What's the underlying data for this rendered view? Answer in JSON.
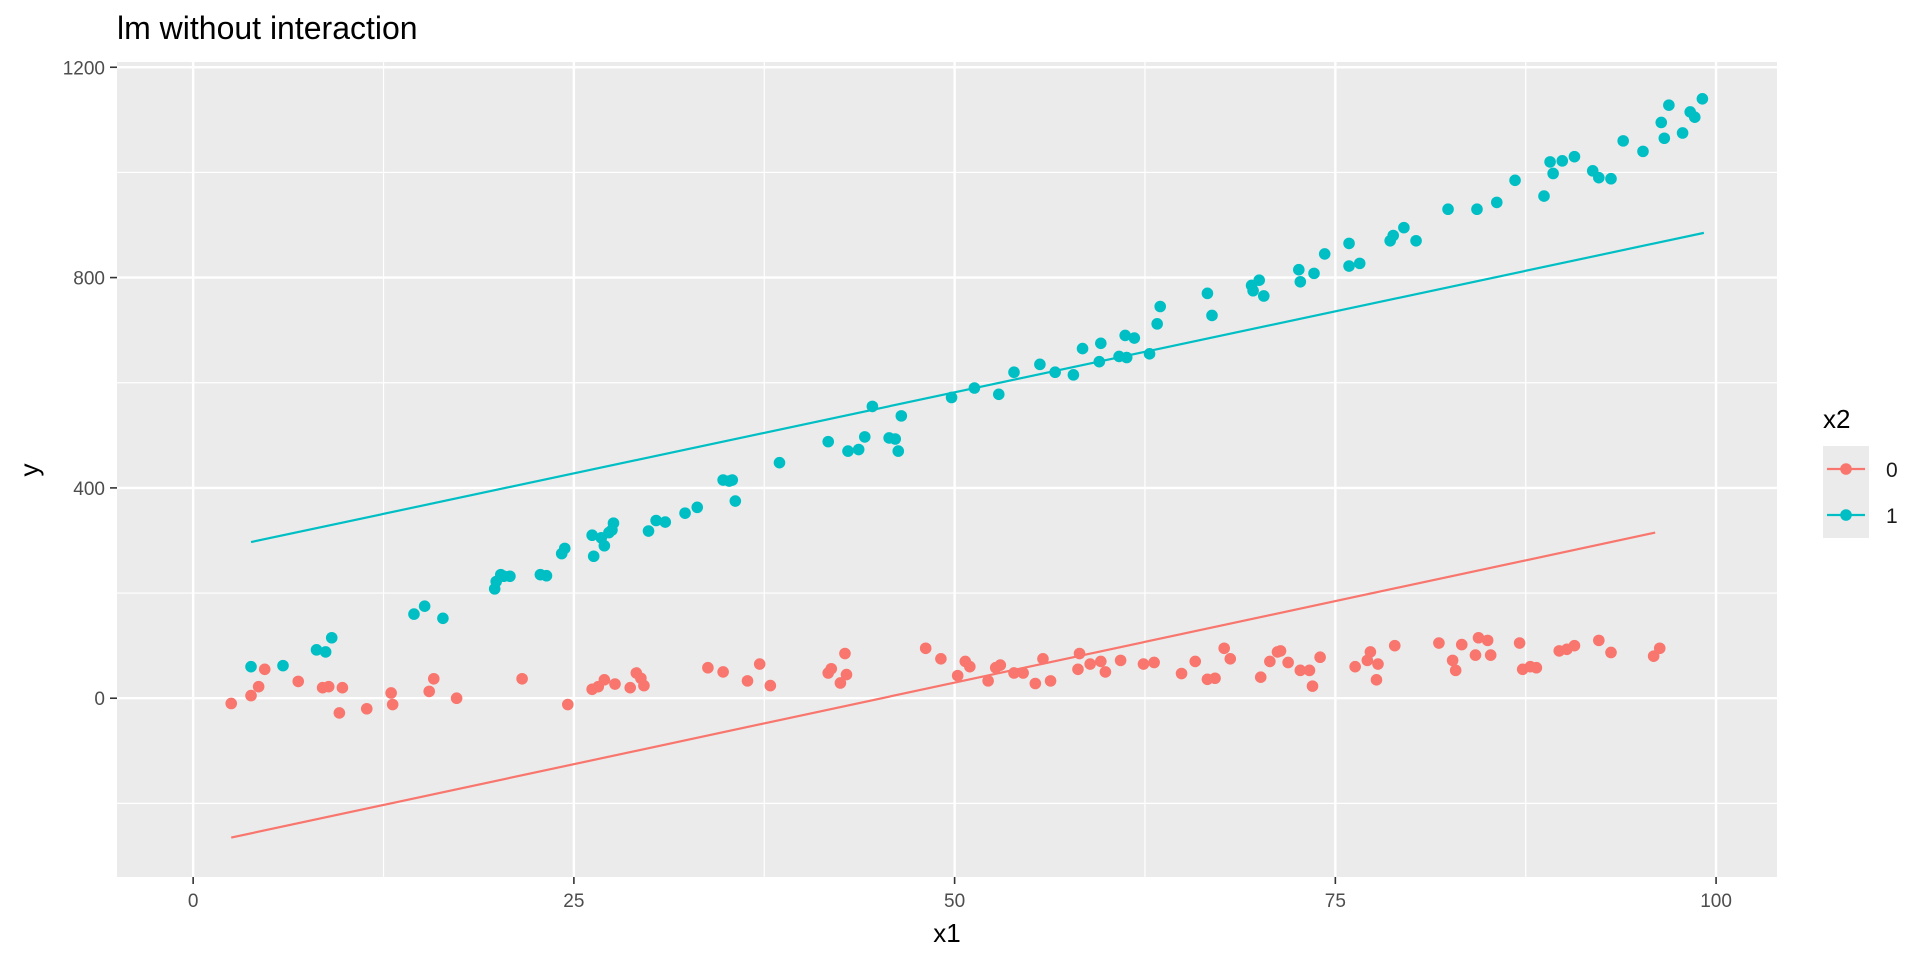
{
  "chart_data": {
    "type": "scatter",
    "title": "lm without interaction",
    "xlabel": "x1",
    "ylabel": "y",
    "xlim": [
      -5,
      104
    ],
    "ylim": [
      -340,
      1210
    ],
    "x_ticks": [
      0,
      25,
      50,
      75,
      100
    ],
    "y_ticks": [
      0,
      400,
      800,
      1200
    ],
    "grid": true,
    "legend": {
      "title": "x2",
      "position": "right",
      "entries": [
        "0",
        "1"
      ]
    },
    "series": [
      {
        "name": "0",
        "color": "#F8766D",
        "line": {
          "x": [
            2.5,
            96
          ],
          "y": [
            -265,
            315
          ]
        },
        "points": [
          [
            2.5,
            -10
          ],
          [
            3.8,
            5
          ],
          [
            4.3,
            22
          ],
          [
            4.7,
            55
          ],
          [
            6.9,
            32
          ],
          [
            8.5,
            20
          ],
          [
            8.9,
            22
          ],
          [
            9.6,
            -28
          ],
          [
            9.8,
            20
          ],
          [
            11.4,
            -20
          ],
          [
            13,
            10
          ],
          [
            13.1,
            -12
          ],
          [
            15.5,
            13
          ],
          [
            15.8,
            37
          ],
          [
            17.3,
            0
          ],
          [
            21.6,
            37
          ],
          [
            24.6,
            -12
          ],
          [
            26.2,
            17
          ],
          [
            26.6,
            22
          ],
          [
            27,
            35
          ],
          [
            27.7,
            27
          ],
          [
            28.7,
            20
          ],
          [
            29.1,
            48
          ],
          [
            29.4,
            38
          ],
          [
            29.6,
            24
          ],
          [
            33.8,
            58
          ],
          [
            34.8,
            50
          ],
          [
            36.4,
            33
          ],
          [
            37.2,
            65
          ],
          [
            37.9,
            24
          ],
          [
            41.7,
            48
          ],
          [
            41.9,
            56
          ],
          [
            42.5,
            29
          ],
          [
            42.8,
            85
          ],
          [
            42.9,
            45
          ],
          [
            48.1,
            95
          ],
          [
            49.1,
            75
          ],
          [
            50.2,
            43
          ],
          [
            50.7,
            70
          ],
          [
            51,
            60
          ],
          [
            52.2,
            33
          ],
          [
            52.7,
            58
          ],
          [
            53,
            63
          ],
          [
            53.9,
            48
          ],
          [
            54.5,
            48
          ],
          [
            55.3,
            28
          ],
          [
            55.8,
            75
          ],
          [
            56.3,
            33
          ],
          [
            58.1,
            55
          ],
          [
            58.2,
            85
          ],
          [
            58.9,
            65
          ],
          [
            59.6,
            70
          ],
          [
            59.9,
            50
          ],
          [
            60.9,
            72
          ],
          [
            62.4,
            65
          ],
          [
            63.1,
            68
          ],
          [
            64.9,
            47
          ],
          [
            65.8,
            70
          ],
          [
            66.6,
            36
          ],
          [
            67.1,
            38
          ],
          [
            67.7,
            95
          ],
          [
            68.1,
            75
          ],
          [
            70.1,
            40
          ],
          [
            70.7,
            70
          ],
          [
            71.2,
            88
          ],
          [
            71.4,
            90
          ],
          [
            71.9,
            68
          ],
          [
            72.7,
            53
          ],
          [
            73.3,
            53
          ],
          [
            73.5,
            23
          ],
          [
            74,
            78
          ],
          [
            76.3,
            60
          ],
          [
            77.1,
            72
          ],
          [
            77.3,
            88
          ],
          [
            77.7,
            35
          ],
          [
            77.8,
            65
          ],
          [
            78.9,
            100
          ],
          [
            81.8,
            105
          ],
          [
            82.7,
            72
          ],
          [
            82.9,
            53
          ],
          [
            83.3,
            102
          ],
          [
            84.2,
            82
          ],
          [
            84.4,
            115
          ],
          [
            85,
            110
          ],
          [
            85.2,
            82
          ],
          [
            87.1,
            105
          ],
          [
            87.3,
            55
          ],
          [
            87.8,
            60
          ],
          [
            88.2,
            58
          ],
          [
            89.7,
            90
          ],
          [
            90.2,
            93
          ],
          [
            90.7,
            100
          ],
          [
            92.3,
            110
          ],
          [
            93.1,
            87
          ],
          [
            95.9,
            80
          ],
          [
            96.3,
            95
          ]
        ]
      },
      {
        "name": "1",
        "color": "#00BFC4",
        "line": {
          "x": [
            3.8,
            99.2
          ],
          "y": [
            297,
            885
          ]
        },
        "points": [
          [
            3.8,
            60
          ],
          [
            5.9,
            62
          ],
          [
            8.1,
            92
          ],
          [
            8.7,
            88
          ],
          [
            9.1,
            115
          ],
          [
            14.5,
            160
          ],
          [
            15.2,
            175
          ],
          [
            16.4,
            152
          ],
          [
            19.8,
            208
          ],
          [
            19.9,
            222
          ],
          [
            20.2,
            235
          ],
          [
            20.4,
            232
          ],
          [
            20.8,
            232
          ],
          [
            22.8,
            235
          ],
          [
            23.2,
            233
          ],
          [
            24.2,
            275
          ],
          [
            24.4,
            285
          ],
          [
            26.2,
            310
          ],
          [
            26.3,
            270
          ],
          [
            26.8,
            305
          ],
          [
            27,
            290
          ],
          [
            27.3,
            315
          ],
          [
            27.5,
            320
          ],
          [
            27.6,
            333
          ],
          [
            29.9,
            318
          ],
          [
            30.4,
            338
          ],
          [
            31,
            335
          ],
          [
            32.3,
            352
          ],
          [
            33.1,
            363
          ],
          [
            34.8,
            415
          ],
          [
            35.2,
            413
          ],
          [
            35.4,
            415
          ],
          [
            35.6,
            375
          ],
          [
            38.5,
            448
          ],
          [
            41.7,
            488
          ],
          [
            43,
            470
          ],
          [
            43.7,
            473
          ],
          [
            44.1,
            497
          ],
          [
            44.6,
            555
          ],
          [
            45.7,
            495
          ],
          [
            46.1,
            493
          ],
          [
            46.3,
            470
          ],
          [
            46.5,
            537
          ],
          [
            49.8,
            572
          ],
          [
            51.3,
            590
          ],
          [
            52.9,
            578
          ],
          [
            53.9,
            620
          ],
          [
            55.6,
            635
          ],
          [
            56.6,
            620
          ],
          [
            57.8,
            615
          ],
          [
            58.4,
            665
          ],
          [
            59.5,
            640
          ],
          [
            59.6,
            675
          ],
          [
            60.8,
            650
          ],
          [
            61.2,
            690
          ],
          [
            61.3,
            648
          ],
          [
            61.8,
            685
          ],
          [
            62.8,
            655
          ],
          [
            63.3,
            712
          ],
          [
            63.5,
            745
          ],
          [
            66.6,
            770
          ],
          [
            66.9,
            728
          ],
          [
            69.5,
            785
          ],
          [
            69.6,
            775
          ],
          [
            70,
            795
          ],
          [
            70.3,
            765
          ],
          [
            72.6,
            815
          ],
          [
            72.7,
            792
          ],
          [
            73.6,
            808
          ],
          [
            74.3,
            845
          ],
          [
            75.9,
            822
          ],
          [
            75.9,
            865
          ],
          [
            76.6,
            827
          ],
          [
            78.6,
            870
          ],
          [
            78.8,
            880
          ],
          [
            79.5,
            895
          ],
          [
            80.3,
            870
          ],
          [
            82.4,
            930
          ],
          [
            84.3,
            930
          ],
          [
            85.6,
            943
          ],
          [
            86.8,
            985
          ],
          [
            88.7,
            955
          ],
          [
            89.1,
            1020
          ],
          [
            89.3,
            998
          ],
          [
            89.9,
            1022
          ],
          [
            90.7,
            1030
          ],
          [
            91.9,
            1003
          ],
          [
            92.3,
            990
          ],
          [
            93.1,
            988
          ],
          [
            93.9,
            1060
          ],
          [
            95.2,
            1040
          ],
          [
            96.4,
            1095
          ],
          [
            96.6,
            1065
          ],
          [
            96.9,
            1128
          ],
          [
            97.8,
            1075
          ],
          [
            98.3,
            1115
          ],
          [
            98.6,
            1105
          ],
          [
            99.1,
            1140
          ]
        ]
      }
    ]
  }
}
